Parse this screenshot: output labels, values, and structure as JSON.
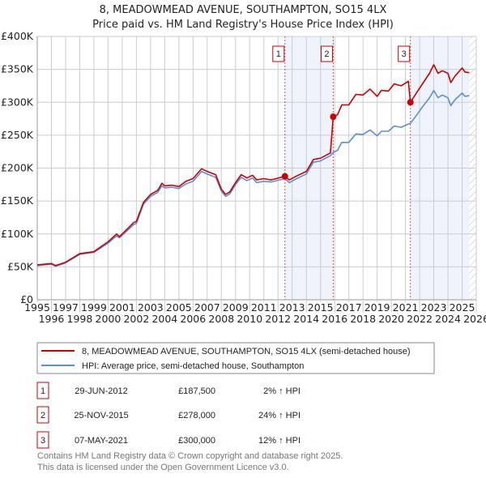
{
  "chart_data": {
    "type": "line",
    "title": "8, MEADOWMEAD AVENUE, SOUTHAMPTON, SO15 4LX",
    "subtitle": "Price paid vs. HM Land Registry's House Price Index (HPI)",
    "xlim": [
      1995,
      2026
    ],
    "ylim": [
      0,
      400000
    ],
    "x_ticks": [
      "1995",
      "1996",
      "1997",
      "1998",
      "1999",
      "2000",
      "2001",
      "2002",
      "2003",
      "2004",
      "2005",
      "2006",
      "2007",
      "2008",
      "2009",
      "2010",
      "2011",
      "2012",
      "2013",
      "2014",
      "2015",
      "2016",
      "2017",
      "2018",
      "2019",
      "2020",
      "2021",
      "2022",
      "2023",
      "2024",
      "2025",
      "2026"
    ],
    "y_ticks": [
      {
        "value": 0,
        "label": "£0"
      },
      {
        "value": 50000,
        "label": "£50K"
      },
      {
        "value": 100000,
        "label": "£100K"
      },
      {
        "value": 150000,
        "label": "£150K"
      },
      {
        "value": 200000,
        "label": "£200K"
      },
      {
        "value": 250000,
        "label": "£250K"
      },
      {
        "value": 300000,
        "label": "£300K"
      },
      {
        "value": 350000,
        "label": "£350K"
      },
      {
        "value": 400000,
        "label": "£400K"
      }
    ],
    "grid": true,
    "x": [
      1995.0,
      1996.0,
      1996.3,
      1997.0,
      1998.0,
      1999.0,
      2000.0,
      2000.6,
      2000.8,
      2001.0,
      2001.8,
      2002.0,
      2002.5,
      2003.0,
      2003.5,
      2003.8,
      2004.0,
      2004.5,
      2005.0,
      2005.5,
      2006.0,
      2006.6,
      2007.0,
      2007.6,
      2008.0,
      2008.3,
      2008.6,
      2009.0,
      2009.4,
      2009.8,
      2010.2,
      2010.5,
      2011.0,
      2011.5,
      2012.49,
      2012.8,
      2013.3,
      2014.0,
      2014.5,
      2015.0,
      2015.7,
      2015.9,
      2016.2,
      2016.5,
      2017.0,
      2017.5,
      2018.0,
      2018.5,
      2019.0,
      2019.3,
      2019.8,
      2020.2,
      2020.7,
      2021.2,
      2021.35,
      2021.8,
      2022.2,
      2022.7,
      2023.0,
      2023.3,
      2023.6,
      2024.0,
      2024.2,
      2024.5,
      2025.0,
      2025.2,
      2025.5
    ],
    "series": [
      {
        "name": "8, MEADOWMEAD AVENUE, SOUTHAMPTON, SO15 4LX (semi-detached house)",
        "color": "#cc0000",
        "values": [
          53000,
          55000,
          52000,
          57000,
          70000,
          73000,
          88000,
          100000,
          96000,
          100000,
          117000,
          119000,
          148000,
          160000,
          166000,
          177000,
          173000,
          174000,
          172000,
          180000,
          184000,
          199000,
          195000,
          190000,
          168000,
          160000,
          164000,
          178000,
          190000,
          185000,
          189000,
          182000,
          184000,
          182000,
          187500,
          182000,
          188000,
          195000,
          213000,
          215000,
          223000,
          278000,
          281000,
          296000,
          296000,
          312000,
          311000,
          320000,
          309000,
          318000,
          317000,
          328000,
          325000,
          332000,
          300000,
          315000,
          328000,
          344000,
          357000,
          344000,
          348000,
          344000,
          330000,
          340000,
          352000,
          346000,
          345000
        ]
      },
      {
        "name": "HPI: Average price, semi-detached house, Southampton",
        "color": "#5b8fd4",
        "values": [
          52000,
          54000,
          51000,
          56000,
          69000,
          72000,
          86000,
          97000,
          94000,
          98000,
          114000,
          116000,
          145000,
          157000,
          163000,
          173000,
          170000,
          171000,
          169000,
          176000,
          180000,
          195000,
          191000,
          186000,
          165000,
          157000,
          161000,
          175000,
          186000,
          181000,
          185000,
          178000,
          180000,
          179000,
          184000,
          178000,
          184000,
          191000,
          209000,
          211000,
          219000,
          224000,
          227000,
          239000,
          239000,
          252000,
          251000,
          258000,
          249000,
          256000,
          256000,
          264000,
          262000,
          267000,
          268000,
          281000,
          293000,
          307000,
          318000,
          307000,
          311000,
          307000,
          295000,
          304000,
          314000,
          309000,
          310000
        ]
      }
    ],
    "sales": [
      {
        "num": "1",
        "x": 2012.49,
        "value": 187500,
        "date": "29-JUN-2012",
        "price": "£187,500",
        "delta": "2% ↑ HPI"
      },
      {
        "num": "2",
        "x": 2015.9,
        "value": 278000,
        "date": "25-NOV-2015",
        "price": "£278,000",
        "delta": "24% ↑ HPI"
      },
      {
        "num": "3",
        "x": 2021.35,
        "value": 300000,
        "date": "07-MAY-2021",
        "price": "£300,000",
        "delta": "12% ↑ HPI"
      }
    ],
    "shaded_ranges": [
      [
        2012.49,
        2015.9
      ],
      [
        2021.35,
        2025.5
      ]
    ],
    "hatched_from": 2025.5,
    "legend_placement": "below"
  },
  "footer": {
    "line1": "Contains HM Land Registry data © Crown copyright and database right 2025.",
    "line2": "This data is licensed under the Open Government Licence v3.0."
  }
}
